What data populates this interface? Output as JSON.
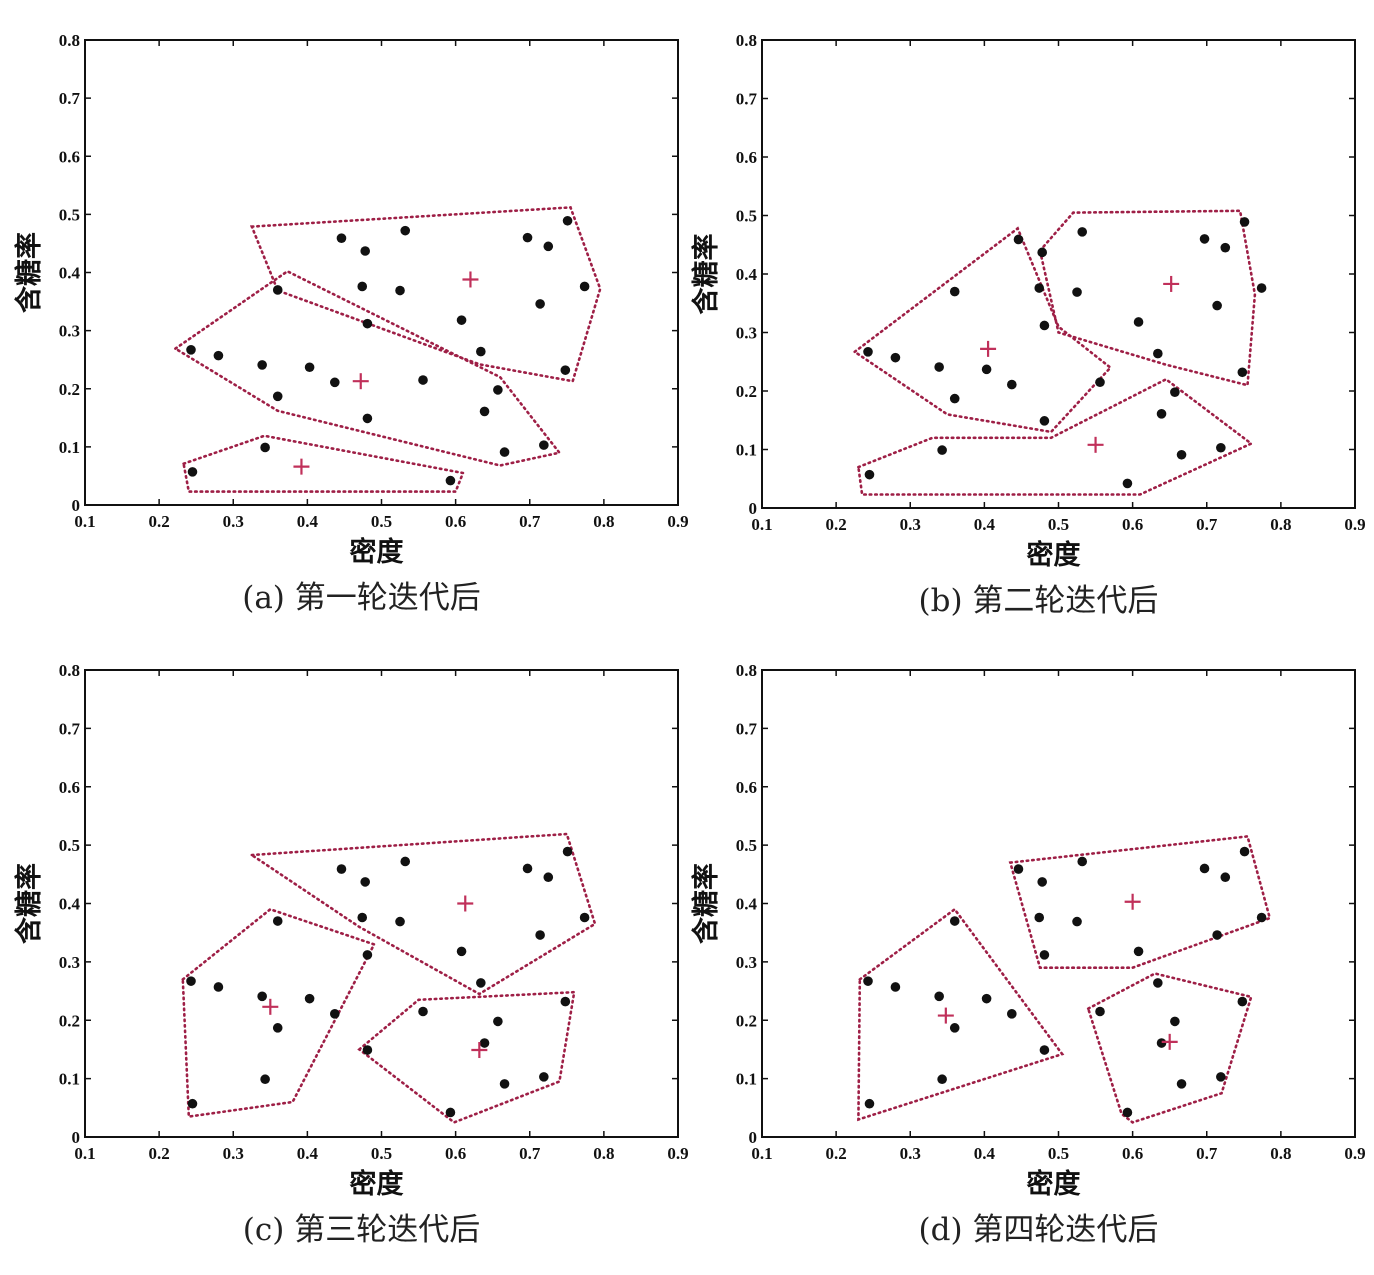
{
  "chart_data": [
    {
      "type": "scatter",
      "caption": "(a) 第一轮迭代后",
      "xlabel": "密度",
      "ylabel": "含糖率",
      "xlim": [
        0.1,
        0.9
      ],
      "ylim": [
        0,
        0.8
      ],
      "xticks": [
        "0.1",
        "0.2",
        "0.3",
        "0.4",
        "0.5",
        "0.6",
        "0.7",
        "0.8",
        "0.9"
      ],
      "yticks": [
        "0",
        "0.1",
        "0.2",
        "0.3",
        "0.4",
        "0.5",
        "0.6",
        "0.7",
        "0.8"
      ],
      "points": [
        [
          0.243,
          0.267
        ],
        [
          0.245,
          0.057
        ],
        [
          0.28,
          0.257
        ],
        [
          0.339,
          0.241
        ],
        [
          0.343,
          0.099
        ],
        [
          0.36,
          0.37
        ],
        [
          0.36,
          0.187
        ],
        [
          0.403,
          0.237
        ],
        [
          0.437,
          0.211
        ],
        [
          0.446,
          0.459
        ],
        [
          0.474,
          0.376
        ],
        [
          0.478,
          0.437
        ],
        [
          0.481,
          0.312
        ],
        [
          0.481,
          0.149
        ],
        [
          0.525,
          0.369
        ],
        [
          0.532,
          0.472
        ],
        [
          0.556,
          0.215
        ],
        [
          0.593,
          0.042
        ],
        [
          0.608,
          0.318
        ],
        [
          0.634,
          0.264
        ],
        [
          0.639,
          0.161
        ],
        [
          0.657,
          0.198
        ],
        [
          0.666,
          0.091
        ],
        [
          0.697,
          0.46
        ],
        [
          0.719,
          0.103
        ],
        [
          0.725,
          0.445
        ],
        [
          0.748,
          0.232
        ],
        [
          0.751,
          0.489
        ],
        [
          0.774,
          0.376
        ],
        [
          0.714,
          0.346
        ]
      ],
      "centroids": [
        [
          0.62,
          0.388
        ],
        [
          0.472,
          0.213
        ],
        [
          0.392,
          0.066
        ]
      ],
      "hulls": [
        [
          [
            0.325,
            0.479
          ],
          [
            0.755,
            0.512
          ],
          [
            0.795,
            0.372
          ],
          [
            0.758,
            0.213
          ],
          [
            0.632,
            0.242
          ],
          [
            0.36,
            0.369
          ]
        ],
        [
          [
            0.222,
            0.269
          ],
          [
            0.373,
            0.402
          ],
          [
            0.66,
            0.22
          ],
          [
            0.74,
            0.09
          ],
          [
            0.66,
            0.068
          ],
          [
            0.36,
            0.162
          ]
        ],
        [
          [
            0.233,
            0.071
          ],
          [
            0.342,
            0.119
          ],
          [
            0.61,
            0.055
          ],
          [
            0.6,
            0.023
          ],
          [
            0.24,
            0.023
          ]
        ]
      ]
    },
    {
      "type": "scatter",
      "caption": "(b) 第二轮迭代后",
      "xlabel": "密度",
      "ylabel": "含糖率",
      "xlim": [
        0.1,
        0.9
      ],
      "ylim": [
        0,
        0.8
      ],
      "xticks": [
        "0.1",
        "0.2",
        "0.3",
        "0.4",
        "0.5",
        "0.6",
        "0.7",
        "0.8",
        "0.9"
      ],
      "yticks": [
        "0",
        "0.1",
        "0.2",
        "0.3",
        "0.4",
        "0.5",
        "0.6",
        "0.7",
        "0.8"
      ],
      "points": [
        [
          0.243,
          0.267
        ],
        [
          0.245,
          0.057
        ],
        [
          0.28,
          0.257
        ],
        [
          0.339,
          0.241
        ],
        [
          0.343,
          0.099
        ],
        [
          0.36,
          0.37
        ],
        [
          0.36,
          0.187
        ],
        [
          0.403,
          0.237
        ],
        [
          0.437,
          0.211
        ],
        [
          0.446,
          0.459
        ],
        [
          0.474,
          0.376
        ],
        [
          0.478,
          0.437
        ],
        [
          0.481,
          0.312
        ],
        [
          0.481,
          0.149
        ],
        [
          0.525,
          0.369
        ],
        [
          0.532,
          0.472
        ],
        [
          0.556,
          0.215
        ],
        [
          0.593,
          0.042
        ],
        [
          0.608,
          0.318
        ],
        [
          0.634,
          0.264
        ],
        [
          0.639,
          0.161
        ],
        [
          0.657,
          0.198
        ],
        [
          0.666,
          0.091
        ],
        [
          0.697,
          0.46
        ],
        [
          0.719,
          0.103
        ],
        [
          0.725,
          0.445
        ],
        [
          0.748,
          0.232
        ],
        [
          0.751,
          0.489
        ],
        [
          0.774,
          0.376
        ],
        [
          0.714,
          0.346
        ]
      ],
      "centroids": [
        [
          0.652,
          0.383
        ],
        [
          0.405,
          0.272
        ],
        [
          0.55,
          0.108
        ]
      ],
      "hulls": [
        [
          [
            0.225,
            0.267
          ],
          [
            0.445,
            0.478
          ],
          [
            0.5,
            0.31
          ],
          [
            0.57,
            0.24
          ],
          [
            0.49,
            0.13
          ],
          [
            0.35,
            0.16
          ]
        ],
        [
          [
            0.475,
            0.44
          ],
          [
            0.52,
            0.505
          ],
          [
            0.745,
            0.508
          ],
          [
            0.765,
            0.365
          ],
          [
            0.755,
            0.21
          ],
          [
            0.645,
            0.245
          ],
          [
            0.5,
            0.3
          ]
        ],
        [
          [
            0.23,
            0.07
          ],
          [
            0.33,
            0.12
          ],
          [
            0.49,
            0.12
          ],
          [
            0.645,
            0.22
          ],
          [
            0.76,
            0.11
          ],
          [
            0.61,
            0.023
          ],
          [
            0.235,
            0.023
          ]
        ]
      ]
    },
    {
      "type": "scatter",
      "caption": "(c) 第三轮迭代后",
      "xlabel": "密度",
      "ylabel": "含糖率",
      "xlim": [
        0.1,
        0.9
      ],
      "ylim": [
        0,
        0.8
      ],
      "xticks": [
        "0.1",
        "0.2",
        "0.3",
        "0.4",
        "0.5",
        "0.6",
        "0.7",
        "0.8",
        "0.9"
      ],
      "yticks": [
        "0",
        "0.1",
        "0.2",
        "0.3",
        "0.4",
        "0.5",
        "0.6",
        "0.7",
        "0.8"
      ],
      "points": [
        [
          0.243,
          0.267
        ],
        [
          0.245,
          0.057
        ],
        [
          0.28,
          0.257
        ],
        [
          0.339,
          0.241
        ],
        [
          0.343,
          0.099
        ],
        [
          0.36,
          0.37
        ],
        [
          0.36,
          0.187
        ],
        [
          0.403,
          0.237
        ],
        [
          0.437,
          0.211
        ],
        [
          0.446,
          0.459
        ],
        [
          0.474,
          0.376
        ],
        [
          0.478,
          0.437
        ],
        [
          0.481,
          0.312
        ],
        [
          0.481,
          0.149
        ],
        [
          0.525,
          0.369
        ],
        [
          0.532,
          0.472
        ],
        [
          0.556,
          0.215
        ],
        [
          0.593,
          0.042
        ],
        [
          0.608,
          0.318
        ],
        [
          0.634,
          0.264
        ],
        [
          0.639,
          0.161
        ],
        [
          0.657,
          0.198
        ],
        [
          0.666,
          0.091
        ],
        [
          0.697,
          0.46
        ],
        [
          0.719,
          0.103
        ],
        [
          0.725,
          0.445
        ],
        [
          0.748,
          0.232
        ],
        [
          0.751,
          0.489
        ],
        [
          0.774,
          0.376
        ],
        [
          0.714,
          0.346
        ]
      ],
      "centroids": [
        [
          0.613,
          0.4
        ],
        [
          0.35,
          0.223
        ],
        [
          0.632,
          0.149
        ]
      ],
      "hulls": [
        [
          [
            0.325,
            0.483
          ],
          [
            0.75,
            0.519
          ],
          [
            0.788,
            0.365
          ],
          [
            0.632,
            0.245
          ],
          [
            0.47,
            0.36
          ]
        ],
        [
          [
            0.232,
            0.27
          ],
          [
            0.35,
            0.39
          ],
          [
            0.49,
            0.33
          ],
          [
            0.38,
            0.06
          ],
          [
            0.24,
            0.035
          ]
        ],
        [
          [
            0.47,
            0.15
          ],
          [
            0.55,
            0.235
          ],
          [
            0.76,
            0.248
          ],
          [
            0.74,
            0.095
          ],
          [
            0.598,
            0.025
          ]
        ]
      ]
    },
    {
      "type": "scatter",
      "caption": "(d) 第四轮迭代后",
      "xlabel": "密度",
      "ylabel": "含糖率",
      "xlim": [
        0.1,
        0.9
      ],
      "ylim": [
        0,
        0.8
      ],
      "xticks": [
        "0.1",
        "0.2",
        "0.3",
        "0.4",
        "0.5",
        "0.6",
        "0.7",
        "0.8",
        "0.9"
      ],
      "yticks": [
        "0",
        "0.1",
        "0.2",
        "0.3",
        "0.4",
        "0.5",
        "0.6",
        "0.7",
        "0.8"
      ],
      "points": [
        [
          0.243,
          0.267
        ],
        [
          0.245,
          0.057
        ],
        [
          0.28,
          0.257
        ],
        [
          0.339,
          0.241
        ],
        [
          0.343,
          0.099
        ],
        [
          0.36,
          0.37
        ],
        [
          0.36,
          0.187
        ],
        [
          0.403,
          0.237
        ],
        [
          0.437,
          0.211
        ],
        [
          0.446,
          0.459
        ],
        [
          0.474,
          0.376
        ],
        [
          0.478,
          0.437
        ],
        [
          0.481,
          0.312
        ],
        [
          0.481,
          0.149
        ],
        [
          0.525,
          0.369
        ],
        [
          0.532,
          0.472
        ],
        [
          0.556,
          0.215
        ],
        [
          0.593,
          0.042
        ],
        [
          0.608,
          0.318
        ],
        [
          0.634,
          0.264
        ],
        [
          0.639,
          0.161
        ],
        [
          0.657,
          0.198
        ],
        [
          0.666,
          0.091
        ],
        [
          0.697,
          0.46
        ],
        [
          0.719,
          0.103
        ],
        [
          0.725,
          0.445
        ],
        [
          0.748,
          0.232
        ],
        [
          0.751,
          0.489
        ],
        [
          0.774,
          0.376
        ],
        [
          0.714,
          0.346
        ]
      ],
      "centroids": [
        [
          0.6,
          0.403
        ],
        [
          0.348,
          0.208
        ],
        [
          0.65,
          0.163
        ]
      ],
      "hulls": [
        [
          [
            0.435,
            0.47
          ],
          [
            0.755,
            0.515
          ],
          [
            0.785,
            0.375
          ],
          [
            0.6,
            0.29
          ],
          [
            0.475,
            0.29
          ]
        ],
        [
          [
            0.232,
            0.27
          ],
          [
            0.36,
            0.39
          ],
          [
            0.505,
            0.142
          ],
          [
            0.23,
            0.03
          ]
        ],
        [
          [
            0.54,
            0.22
          ],
          [
            0.63,
            0.28
          ],
          [
            0.76,
            0.24
          ],
          [
            0.72,
            0.075
          ],
          [
            0.6,
            0.025
          ],
          [
            0.585,
            0.04
          ]
        ]
      ]
    }
  ],
  "colors": {
    "point": "#111111",
    "centroid": "#c0305a",
    "hull": "#9e1f46",
    "axis": "#111111"
  }
}
